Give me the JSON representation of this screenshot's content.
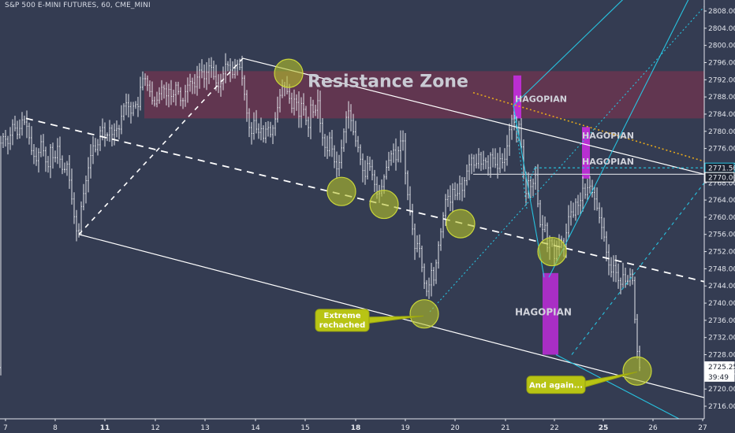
{
  "header": {
    "title": "S&P 500 E-MINI FUTURES, 60, CME_MINI"
  },
  "chart_data": {
    "type": "candlestick",
    "symbol": "S&P 500 E-MINI FUTURES",
    "interval": "60",
    "exchange": "CME_MINI",
    "x_ticks": [
      "7",
      "8",
      "11",
      "12",
      "13",
      "14",
      "15",
      "18",
      "19",
      "20",
      "21",
      "22",
      "25",
      "26",
      "27"
    ],
    "y_ticks": [
      2716,
      2720,
      2724,
      2728,
      2732,
      2736,
      2740,
      2744,
      2748,
      2752,
      2756,
      2760,
      2764,
      2768,
      2772,
      2776,
      2780,
      2784,
      2788,
      2792,
      2796,
      2800,
      2804,
      2808
    ],
    "ylim": [
      2715,
      2810
    ],
    "price_labels": [
      {
        "value": "2771.50",
        "bg": "#1e2432",
        "fg": "#e8eaf0",
        "border": "#27c3e0"
      },
      {
        "value": "2770.00",
        "bg": "#1e2432",
        "fg": "#e8eaf0",
        "border": "#ffffff"
      },
      {
        "value": "2725.25",
        "bg": "#ffffff",
        "fg": "#1e2432",
        "border": "#ffffff"
      },
      {
        "value": "39:49",
        "bg": "#ffffff",
        "fg": "#1e2432",
        "border": "#ffffff"
      }
    ],
    "price_path": [
      [
        0,
        2776
      ],
      [
        6,
        2779
      ],
      [
        12,
        2777
      ],
      [
        18,
        2782
      ],
      [
        24,
        2779
      ],
      [
        30,
        2783
      ],
      [
        36,
        2781
      ],
      [
        42,
        2775
      ],
      [
        48,
        2773
      ],
      [
        54,
        2778
      ],
      [
        58,
        2774
      ],
      [
        62,
        2771
      ],
      [
        66,
        2777
      ],
      [
        70,
        2772
      ],
      [
        74,
        2777
      ],
      [
        78,
        2773
      ],
      [
        82,
        2770
      ],
      [
        86,
        2773
      ],
      [
        90,
        2768
      ],
      [
        94,
        2762
      ],
      [
        98,
        2757
      ],
      [
        101,
        2756
      ],
      [
        104,
        2762
      ],
      [
        108,
        2766
      ],
      [
        112,
        2770
      ],
      [
        116,
        2774
      ],
      [
        120,
        2777
      ],
      [
        124,
        2775
      ],
      [
        128,
        2780
      ],
      [
        132,
        2781
      ],
      [
        136,
        2778
      ],
      [
        140,
        2781
      ],
      [
        144,
        2779
      ],
      [
        148,
        2781
      ],
      [
        152,
        2780
      ],
      [
        156,
        2784
      ],
      [
        160,
        2787
      ],
      [
        164,
        2786
      ],
      [
        168,
        2784
      ],
      [
        172,
        2787
      ],
      [
        176,
        2785
      ],
      [
        180,
        2791
      ],
      [
        184,
        2793
      ],
      [
        188,
        2791
      ],
      [
        192,
        2789
      ],
      [
        196,
        2786
      ],
      [
        200,
        2787
      ],
      [
        204,
        2789
      ],
      [
        208,
        2791
      ],
      [
        212,
        2788
      ],
      [
        216,
        2790
      ],
      [
        220,
        2787
      ],
      [
        224,
        2791
      ],
      [
        228,
        2789
      ],
      [
        232,
        2786
      ],
      [
        236,
        2789
      ],
      [
        240,
        2791
      ],
      [
        244,
        2792
      ],
      [
        248,
        2790
      ],
      [
        252,
        2793
      ],
      [
        256,
        2795
      ],
      [
        260,
        2792
      ],
      [
        264,
        2794
      ],
      [
        268,
        2796
      ],
      [
        272,
        2793
      ],
      [
        276,
        2791
      ],
      [
        280,
        2790
      ],
      [
        284,
        2793
      ],
      [
        288,
        2796
      ],
      [
        292,
        2795
      ],
      [
        296,
        2793
      ],
      [
        300,
        2795
      ],
      [
        304,
        2796
      ],
      [
        308,
        2793
      ],
      [
        312,
        2788
      ],
      [
        316,
        2782
      ],
      [
        320,
        2779
      ],
      [
        324,
        2783
      ],
      [
        328,
        2779
      ],
      [
        332,
        2781
      ],
      [
        336,
        2778
      ],
      [
        340,
        2782
      ],
      [
        344,
        2779
      ],
      [
        348,
        2781
      ],
      [
        352,
        2784
      ],
      [
        356,
        2788
      ],
      [
        360,
        2791
      ],
      [
        364,
        2790
      ],
      [
        368,
        2788
      ],
      [
        372,
        2785
      ],
      [
        376,
        2789
      ],
      [
        380,
        2783
      ],
      [
        384,
        2787
      ],
      [
        388,
        2784
      ],
      [
        392,
        2780
      ],
      [
        396,
        2787
      ],
      [
        400,
        2783
      ],
      [
        404,
        2788
      ],
      [
        408,
        2781
      ],
      [
        412,
        2777
      ],
      [
        416,
        2775
      ],
      [
        420,
        2779
      ],
      [
        424,
        2774
      ],
      [
        428,
        2771
      ],
      [
        432,
        2773
      ],
      [
        436,
        2778
      ],
      [
        440,
        2783
      ],
      [
        444,
        2785
      ],
      [
        448,
        2781
      ],
      [
        452,
        2778
      ],
      [
        456,
        2776
      ],
      [
        460,
        2772
      ],
      [
        464,
        2769
      ],
      [
        468,
        2773
      ],
      [
        472,
        2771
      ],
      [
        476,
        2768
      ],
      [
        480,
        2765
      ],
      [
        484,
        2766
      ],
      [
        488,
        2769
      ],
      [
        492,
        2772
      ],
      [
        496,
        2774
      ],
      [
        500,
        2776
      ],
      [
        504,
        2773
      ],
      [
        508,
        2777
      ],
      [
        512,
        2779
      ],
      [
        516,
        2769
      ],
      [
        520,
        2763
      ],
      [
        524,
        2758
      ],
      [
        528,
        2752
      ],
      [
        532,
        2755
      ],
      [
        536,
        2749
      ],
      [
        540,
        2744
      ],
      [
        544,
        2742
      ],
      [
        548,
        2748
      ],
      [
        552,
        2745
      ],
      [
        556,
        2752
      ],
      [
        560,
        2756
      ],
      [
        564,
        2761
      ],
      [
        568,
        2766
      ],
      [
        572,
        2763
      ],
      [
        576,
        2767
      ],
      [
        580,
        2764
      ],
      [
        584,
        2768
      ],
      [
        588,
        2766
      ],
      [
        592,
        2770
      ],
      [
        596,
        2772
      ],
      [
        600,
        2774
      ],
      [
        604,
        2771
      ],
      [
        608,
        2775
      ],
      [
        612,
        2772
      ],
      [
        616,
        2774
      ],
      [
        620,
        2771
      ],
      [
        624,
        2775
      ],
      [
        628,
        2773
      ],
      [
        632,
        2771
      ],
      [
        636,
        2774
      ],
      [
        640,
        2772
      ],
      [
        644,
        2776
      ],
      [
        648,
        2781
      ],
      [
        652,
        2784
      ],
      [
        656,
        2779
      ],
      [
        660,
        2782
      ],
      [
        664,
        2773
      ],
      [
        668,
        2765
      ],
      [
        672,
        2769
      ],
      [
        676,
        2766
      ],
      [
        680,
        2771
      ],
      [
        684,
        2762
      ],
      [
        688,
        2756
      ],
      [
        692,
        2759
      ],
      [
        696,
        2752
      ],
      [
        700,
        2756
      ],
      [
        704,
        2750
      ],
      [
        708,
        2753
      ],
      [
        712,
        2756
      ],
      [
        716,
        2752
      ],
      [
        720,
        2757
      ],
      [
        724,
        2762
      ],
      [
        728,
        2760
      ],
      [
        732,
        2764
      ],
      [
        736,
        2762
      ],
      [
        740,
        2767
      ],
      [
        744,
        2765
      ],
      [
        748,
        2768
      ],
      [
        752,
        2766
      ],
      [
        756,
        2764
      ],
      [
        760,
        2761
      ],
      [
        764,
        2758
      ],
      [
        768,
        2755
      ],
      [
        772,
        2750
      ],
      [
        776,
        2747
      ],
      [
        780,
        2749
      ],
      [
        784,
        2746
      ],
      [
        788,
        2744
      ],
      [
        792,
        2747
      ],
      [
        796,
        2744
      ],
      [
        800,
        2747
      ],
      [
        804,
        2745
      ],
      [
        808,
        2731
      ],
      [
        812,
        2725
      ]
    ],
    "zones": [
      {
        "kind": "resistance",
        "label": "Resistance Zone",
        "price_from": 2783,
        "price_to": 2794,
        "x_from": 183,
        "x_to": 893,
        "color": "#6a3550",
        "opacity": 0.85
      },
      {
        "kind": "bar",
        "price_from": 2783,
        "price_to": 2793,
        "x_from": 651,
        "x_to": 661,
        "color": "#c02ed8"
      },
      {
        "kind": "bar",
        "price_from": 2769,
        "price_to": 2781,
        "x_from": 738,
        "x_to": 748,
        "color": "#c02ed8"
      },
      {
        "kind": "bar",
        "price_from": 2728,
        "price_to": 2747,
        "x_from": 688,
        "x_to": 708,
        "color": "#b02dcb"
      }
    ],
    "labels": [
      {
        "text": "Resistance Zone",
        "x": 390,
        "price": 2790.3,
        "size": 22,
        "color": "#c9cbd4"
      },
      {
        "text": "HAGOPIAN",
        "x": 653,
        "price": 2786.8,
        "size": 11,
        "color": "#d0d2da"
      },
      {
        "text": "HAGOPIAN",
        "x": 738,
        "price": 2778.3,
        "size": 11,
        "color": "#d0d2da"
      },
      {
        "text": "HAGOPIAN",
        "x": 738,
        "price": 2772.3,
        "size": 11,
        "color": "#d0d2da"
      },
      {
        "text": "HAGOPIAN",
        "x": 653,
        "price": 2737.2,
        "size": 12,
        "color": "#d0d2da"
      }
    ],
    "callouts": [
      {
        "line1": "Extreme",
        "line2": "rechached",
        "box_x": 400,
        "box_price": 2736,
        "tip_x": 537,
        "tip_price": 2737
      },
      {
        "line1": "And again...",
        "line2": "",
        "box_x": 668,
        "box_price": 2721,
        "tip_x": 808,
        "tip_price": 2724
      }
    ],
    "circles": [
      {
        "x": 366,
        "price": 2793.5
      },
      {
        "x": 433,
        "price": 2766
      },
      {
        "x": 487,
        "price": 2763
      },
      {
        "x": 584,
        "price": 2758.5
      },
      {
        "x": 700,
        "price": 2752
      },
      {
        "x": 538,
        "price": 2737.5
      },
      {
        "x": 808,
        "price": 2724.2
      }
    ],
    "trendlines": [
      {
        "points": [
          [
            100,
            2756
          ],
          [
            308,
            2797
          ]
        ],
        "dash": "6,6",
        "color": "#ffffff",
        "width": 1.6
      },
      {
        "points": [
          [
            308,
            2797
          ],
          [
            893,
            2770
          ]
        ],
        "dash": "",
        "color": "#ffffff",
        "width": 1.2
      },
      {
        "points": [
          [
            100,
            2756
          ],
          [
            893,
            2718
          ]
        ],
        "dash": "",
        "color": "#ffffff",
        "width": 1.2
      },
      {
        "points": [
          [
            33,
            2783
          ],
          [
            893,
            2745
          ]
        ],
        "dash": "9,7",
        "color": "#ffffff",
        "width": 1.8
      },
      {
        "points": [
          [
            600,
            2770
          ],
          [
            893,
            2770
          ]
        ],
        "dash": "",
        "color": "#c8cad2",
        "width": 1.2
      },
      {
        "points": [
          [
            678,
            2771.5
          ],
          [
            893,
            2771.5
          ]
        ],
        "dash": "3,3",
        "color": "#27c3e0",
        "width": 1.2
      },
      {
        "points": [
          [
            600,
            2789
          ],
          [
            893,
            2773
          ]
        ],
        "dash": "2,3",
        "color": "#e6a91c",
        "width": 1.6
      },
      {
        "points": [
          [
            651,
            2786
          ],
          [
            893,
            2829
          ]
        ],
        "dash": "",
        "color": "#27c3e0",
        "width": 1.1
      },
      {
        "points": [
          [
            651,
            2786
          ],
          [
            690,
            2746
          ]
        ],
        "dash": "",
        "color": "#27c3e0",
        "width": 1.1
      },
      {
        "points": [
          [
            696,
            2746
          ],
          [
            893,
            2818
          ]
        ],
        "dash": "",
        "color": "#27c3e0",
        "width": 1.1
      },
      {
        "points": [
          [
            725,
            2728
          ],
          [
            893,
            2768
          ]
        ],
        "dash": "4,4",
        "color": "#27c3e0",
        "width": 1.1
      },
      {
        "points": [
          [
            545,
            2738
          ],
          [
            893,
            2809
          ]
        ],
        "dash": "2,3",
        "color": "#27c3e0",
        "width": 1.1
      },
      {
        "points": [
          [
            620,
            2819
          ],
          [
            660,
            2840
          ]
        ],
        "dash": "4,4",
        "color": "#27c3e0",
        "width": 1.1
      },
      {
        "points": [
          [
            651,
            2786
          ],
          [
            668,
            2762
          ]
        ],
        "dash": "2,3",
        "color": "#27c3e0",
        "width": 1.1
      },
      {
        "points": [
          [
            705,
            2728
          ],
          [
            893,
            2710
          ]
        ],
        "dash": "",
        "color": "#27c3e0",
        "width": 1.1
      },
      {
        "points": [
          [
            673,
            2769
          ],
          [
            678,
            2771.5
          ]
        ],
        "dash": "2,2",
        "color": "#27c3e0",
        "width": 1.1
      }
    ]
  },
  "colors": {
    "background": "#343c52",
    "candle": "#e4e6ec",
    "axis_text": "#e2e5ec",
    "circle_fill": "#b6c22a",
    "callout_fill": "#b8c414",
    "purple": "#c02ed8",
    "cyan": "#27c3e0",
    "orange": "#e6a91c"
  }
}
